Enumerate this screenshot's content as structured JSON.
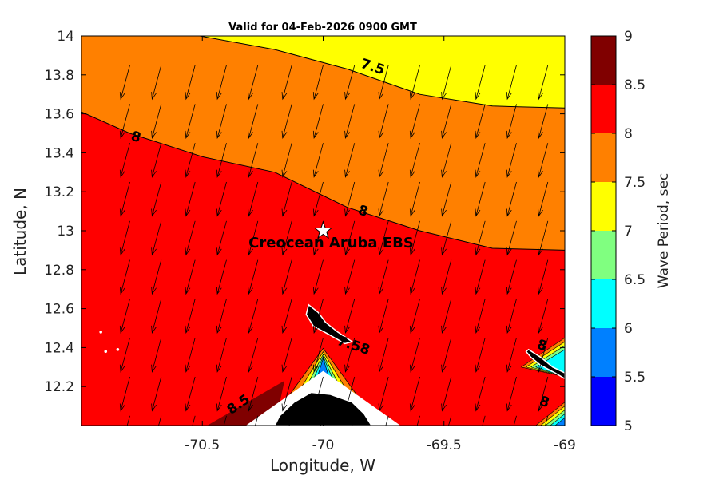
{
  "chart_data": {
    "type": "contour-map",
    "title": "Valid for 04-Feb-2026 0900 GMT",
    "xlabel": "Longitude, W",
    "ylabel": "Latitude, N",
    "xlim": [
      -71.0,
      -69.0
    ],
    "ylim": [
      12.0,
      14.0
    ],
    "x_ticks": [
      -70.5,
      -70.0,
      -69.5,
      -69.0
    ],
    "x_tick_labels": [
      "-70.5",
      "-70",
      "-69.5",
      "-69"
    ],
    "y_ticks": [
      12.2,
      12.4,
      12.6,
      12.8,
      13.0,
      13.2,
      13.4,
      13.6,
      13.8,
      14.0
    ],
    "y_tick_labels": [
      "12.2",
      "12.4",
      "12.6",
      "12.8",
      "13",
      "13.2",
      "13.4",
      "13.6",
      "13.8",
      "14"
    ],
    "colorbar": {
      "label": "Wave Period, sec",
      "levels": [
        5,
        5.5,
        6,
        6.5,
        7,
        7.5,
        8,
        8.5,
        9
      ],
      "level_labels": [
        "5",
        "5.5",
        "6",
        "6.5",
        "7",
        "7.5",
        "8",
        "8.5",
        "9"
      ],
      "colors": [
        "#0000ff",
        "#0080ff",
        "#00ffff",
        "#80ff80",
        "#ffff00",
        "#ff8000",
        "#ff0000",
        "#800000"
      ]
    },
    "contours": [
      {
        "level": 7.5,
        "label": "7.5",
        "points": [
          [
            -71.0,
            14.01
          ],
          [
            -70.6,
            14.02
          ],
          [
            -70.2,
            13.93
          ],
          [
            -69.9,
            13.83
          ],
          [
            -69.6,
            13.7
          ],
          [
            -69.3,
            13.64
          ],
          [
            -69.0,
            13.63
          ]
        ]
      },
      {
        "level": 8.0,
        "label": "8",
        "points": [
          [
            -71.0,
            13.61
          ],
          [
            -70.8,
            13.5
          ],
          [
            -70.5,
            13.38
          ],
          [
            -70.2,
            13.3
          ],
          [
            -69.9,
            13.12
          ],
          [
            -69.6,
            13.0
          ],
          [
            -69.3,
            12.91
          ],
          [
            -69.0,
            12.9
          ]
        ]
      }
    ],
    "contour_labels": [
      {
        "text": "7.5",
        "lon": -69.8,
        "lat": 13.82
      },
      {
        "text": "8",
        "lon": -70.78,
        "lat": 13.46
      },
      {
        "text": "8",
        "lon": -69.84,
        "lat": 13.08
      },
      {
        "text": "7.58",
        "lon": -69.88,
        "lat": 12.39
      },
      {
        "text": "8.5",
        "lon": -70.34,
        "lat": 12.09
      },
      {
        "text": "8",
        "lon": -69.1,
        "lat": 12.39
      },
      {
        "text": "8",
        "lon": -69.09,
        "lat": 12.1
      }
    ],
    "station": {
      "name": "Creocean Aruba EBS",
      "lon": -70.0,
      "lat": 13.0
    },
    "vector_field": {
      "description": "wave direction arrows",
      "lon": [
        -70.8,
        -70.67,
        -70.53,
        -70.4,
        -70.27,
        -70.13,
        -70.0,
        -69.87,
        -69.73,
        -69.6,
        -69.47,
        -69.33,
        -69.2,
        -69.07
      ],
      "lat": [
        12.05,
        12.25,
        12.45,
        12.65,
        12.85,
        13.05,
        13.25,
        13.45,
        13.65,
        13.85
      ],
      "direction_from_deg": 15
    },
    "land_masses": [
      {
        "name": "Aruba",
        "polygon": [
          [
            -70.06,
            12.62
          ],
          [
            -70.02,
            12.58
          ],
          [
            -69.99,
            12.53
          ],
          [
            -69.94,
            12.48
          ],
          [
            -69.88,
            12.43
          ],
          [
            -69.91,
            12.42
          ],
          [
            -69.98,
            12.47
          ],
          [
            -70.04,
            12.51
          ],
          [
            -70.07,
            12.57
          ]
        ]
      },
      {
        "name": "Curacao",
        "polygon": [
          [
            -69.15,
            12.39
          ],
          [
            -69.1,
            12.35
          ],
          [
            -69.05,
            12.3
          ],
          [
            -69.0,
            12.27
          ],
          [
            -69.0,
            12.24
          ],
          [
            -69.04,
            12.27
          ],
          [
            -69.1,
            12.31
          ],
          [
            -69.14,
            12.35
          ],
          [
            -69.16,
            12.38
          ]
        ]
      },
      {
        "name": "Paraguana Peninsula",
        "polygon": [
          [
            -70.2,
            12.0
          ],
          [
            -70.18,
            12.05
          ],
          [
            -70.12,
            12.12
          ],
          [
            -70.05,
            12.17
          ],
          [
            -69.97,
            12.16
          ],
          [
            -69.88,
            12.12
          ],
          [
            -69.83,
            12.06
          ],
          [
            -69.8,
            12.0
          ]
        ]
      }
    ]
  }
}
